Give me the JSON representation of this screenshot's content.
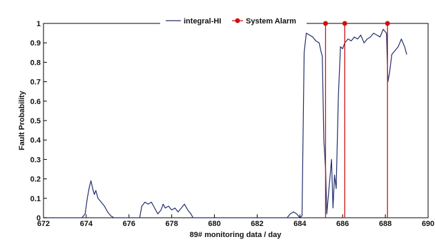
{
  "chart_data": {
    "type": "line",
    "title": "",
    "xlabel": "89# monitoring data / day",
    "ylabel": "Fault Probability",
    "xlim": [
      672,
      690
    ],
    "ylim": [
      0,
      1
    ],
    "x_ticks": [
      "672",
      "674",
      "676",
      "678",
      "680",
      "682",
      "684",
      "686",
      "688",
      "690"
    ],
    "y_ticks": [
      "0",
      "0.1",
      "0.2",
      "0.3",
      "0.4",
      "0.5",
      "0.6",
      "0.7",
      "0.8",
      "0.9",
      "1"
    ],
    "grid": false,
    "legend_position": "top",
    "colors": {
      "line": "#1f2d6b",
      "alarm": "#cc1111",
      "axis": "#000000"
    },
    "series": [
      {
        "name": "integral-HI",
        "style": "line",
        "points": [
          [
            672.0,
            0.0
          ],
          [
            673.8,
            0.0
          ],
          [
            673.95,
            0.02
          ],
          [
            674.05,
            0.1
          ],
          [
            674.15,
            0.16
          ],
          [
            674.22,
            0.19
          ],
          [
            674.3,
            0.15
          ],
          [
            674.38,
            0.12
          ],
          [
            674.45,
            0.14
          ],
          [
            674.55,
            0.1
          ],
          [
            674.7,
            0.08
          ],
          [
            674.85,
            0.06
          ],
          [
            675.0,
            0.03
          ],
          [
            675.15,
            0.01
          ],
          [
            675.3,
            0.0
          ],
          [
            676.5,
            0.0
          ],
          [
            676.6,
            0.06
          ],
          [
            676.75,
            0.08
          ],
          [
            676.9,
            0.07
          ],
          [
            677.05,
            0.08
          ],
          [
            677.2,
            0.05
          ],
          [
            677.35,
            0.02
          ],
          [
            677.5,
            0.04
          ],
          [
            677.6,
            0.07
          ],
          [
            677.7,
            0.05
          ],
          [
            677.85,
            0.06
          ],
          [
            678.0,
            0.04
          ],
          [
            678.15,
            0.05
          ],
          [
            678.3,
            0.03
          ],
          [
            678.45,
            0.05
          ],
          [
            678.6,
            0.07
          ],
          [
            678.75,
            0.04
          ],
          [
            678.9,
            0.02
          ],
          [
            679.0,
            0.0
          ],
          [
            683.4,
            0.0
          ],
          [
            683.55,
            0.02
          ],
          [
            683.7,
            0.03
          ],
          [
            683.85,
            0.02
          ],
          [
            684.0,
            0.0
          ],
          [
            684.1,
            0.01
          ],
          [
            684.2,
            0.85
          ],
          [
            684.3,
            0.95
          ],
          [
            684.45,
            0.94
          ],
          [
            684.6,
            0.93
          ],
          [
            684.75,
            0.91
          ],
          [
            684.9,
            0.9
          ],
          [
            685.0,
            0.85
          ],
          [
            685.05,
            0.83
          ],
          [
            685.12,
            0.4
          ],
          [
            685.2,
            0.25
          ],
          [
            685.26,
            0.02
          ],
          [
            685.32,
            0.1
          ],
          [
            685.4,
            0.2
          ],
          [
            685.48,
            0.3
          ],
          [
            685.55,
            0.05
          ],
          [
            685.62,
            0.22
          ],
          [
            685.7,
            0.15
          ],
          [
            685.8,
            0.62
          ],
          [
            685.9,
            0.88
          ],
          [
            686.0,
            0.87
          ],
          [
            686.1,
            0.9
          ],
          [
            686.25,
            0.92
          ],
          [
            686.4,
            0.91
          ],
          [
            686.55,
            0.93
          ],
          [
            686.7,
            0.92
          ],
          [
            686.85,
            0.94
          ],
          [
            687.0,
            0.9
          ],
          [
            687.15,
            0.92
          ],
          [
            687.3,
            0.93
          ],
          [
            687.45,
            0.95
          ],
          [
            687.6,
            0.94
          ],
          [
            687.75,
            0.93
          ],
          [
            687.9,
            0.97
          ],
          [
            688.05,
            0.95
          ],
          [
            688.12,
            0.7
          ],
          [
            688.2,
            0.75
          ],
          [
            688.3,
            0.84
          ],
          [
            688.45,
            0.86
          ],
          [
            688.6,
            0.88
          ],
          [
            688.75,
            0.92
          ],
          [
            688.9,
            0.88
          ],
          [
            689.0,
            0.84
          ]
        ]
      },
      {
        "name": "System Alarm",
        "style": "stem",
        "points": [
          [
            685.2,
            1.0
          ],
          [
            686.1,
            1.0
          ],
          [
            688.1,
            1.0
          ]
        ]
      }
    ]
  }
}
